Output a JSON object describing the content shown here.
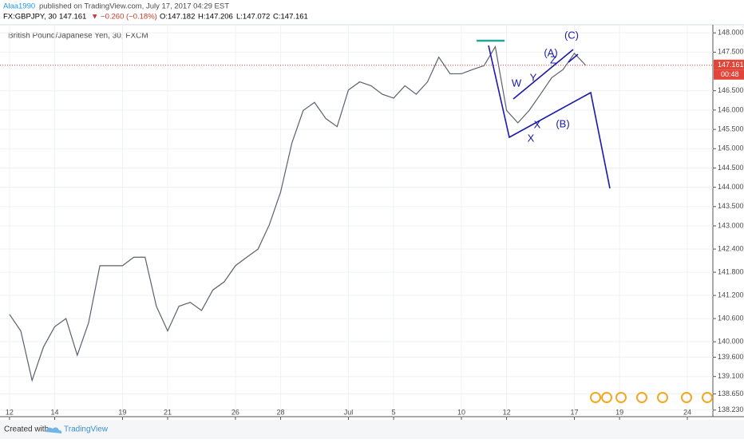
{
  "header": {
    "author": "Alaa1990",
    "published": "published on TradingView.com, July 17, 2017 04:29 EST",
    "symbol": "FX:GBPJPY, 30",
    "price": "147.161",
    "change": "▼ −0.260 (−0.18%)",
    "open": "O:147.182",
    "high": "H:147.206",
    "low": "L:147.072",
    "close": "C:147.161"
  },
  "chart_data": {
    "type": "line",
    "title": "British Pound/Japanese Yen, 30, FXCM",
    "color": "#5d606b",
    "x": [
      0,
      0.5,
      1,
      1.5,
      2,
      2.5,
      3,
      3.5,
      4,
      4.5,
      5,
      5.5,
      6,
      6.5,
      7,
      7.5,
      8,
      8.5,
      9,
      9.5,
      10,
      10.5,
      11,
      11.5,
      12,
      12.5,
      13,
      13.5,
      14,
      14.5,
      15,
      15.5,
      16,
      16.5,
      17,
      17.5,
      18,
      18.5,
      19,
      19.5,
      20,
      20.5,
      21,
      21.5,
      22,
      22.5,
      23,
      23.5,
      24,
      24.5,
      25,
      25.5
    ],
    "values": [
      140.71,
      140.28,
      139.0,
      139.86,
      140.39,
      140.6,
      139.65,
      140.49,
      141.97,
      141.97,
      141.97,
      142.19,
      142.19,
      140.92,
      140.28,
      140.92,
      141.02,
      140.81,
      141.34,
      141.55,
      141.97,
      142.19,
      142.4,
      143.03,
      143.88,
      145.15,
      145.99,
      146.2,
      145.78,
      145.57,
      146.52,
      146.73,
      146.63,
      146.41,
      146.31,
      146.63,
      146.41,
      146.73,
      147.37,
      146.94,
      146.94,
      147.05,
      147.15,
      147.64,
      145.99,
      145.67,
      145.99,
      146.41,
      146.84,
      147.05,
      147.47,
      147.161
    ],
    "xlim": [
      -0.42,
      31.13
    ],
    "xticks": [
      {
        "value": 0,
        "label": "12"
      },
      {
        "value": 2,
        "label": "14"
      },
      {
        "value": 5,
        "label": "19"
      },
      {
        "value": 7,
        "label": "21"
      },
      {
        "value": 10,
        "label": "26"
      },
      {
        "value": 12,
        "label": "28"
      },
      {
        "value": 15,
        "label": "Jul"
      },
      {
        "value": 17,
        "label": "5"
      },
      {
        "value": 20,
        "label": "10"
      },
      {
        "value": 22,
        "label": "12"
      },
      {
        "value": 25,
        "label": "17"
      },
      {
        "value": 27,
        "label": "19"
      },
      {
        "value": 30,
        "label": "24"
      }
    ],
    "ylim": [
      138.06,
      148.21
    ],
    "yticks": [
      {
        "value": 148,
        "label": "148.000"
      },
      {
        "value": 147.5,
        "label": "147.500"
      },
      {
        "value": 146.5,
        "label": "146.500"
      },
      {
        "value": 146,
        "label": "146.000"
      },
      {
        "value": 145.5,
        "label": "145.500"
      },
      {
        "value": 145,
        "label": "145.000"
      },
      {
        "value": 144.5,
        "label": "144.500"
      },
      {
        "value": 144,
        "label": "144.000"
      },
      {
        "value": 143.5,
        "label": "143.500"
      },
      {
        "value": 143,
        "label": "143.000"
      },
      {
        "value": 142.4,
        "label": "142.400"
      },
      {
        "value": 141.8,
        "label": "141.800"
      },
      {
        "value": 141.2,
        "label": "141.200"
      },
      {
        "value": 140.6,
        "label": "140.600"
      },
      {
        "value": 140,
        "label": "140.000"
      },
      {
        "value": 139.6,
        "label": "139.600"
      },
      {
        "value": 139.1,
        "label": "139.100"
      },
      {
        "value": 138.65,
        "label": "138.650"
      },
      {
        "value": 138.23,
        "label": "138.230"
      }
    ],
    "grid": true,
    "last_price": 147.161,
    "countdown": "00:48",
    "annotations": [
      "W",
      "Y",
      "X",
      "X",
      "Z",
      "(A)",
      "(B)",
      "(C)"
    ]
  },
  "footer": {
    "created": "Created with",
    "brand": "TradingView"
  }
}
